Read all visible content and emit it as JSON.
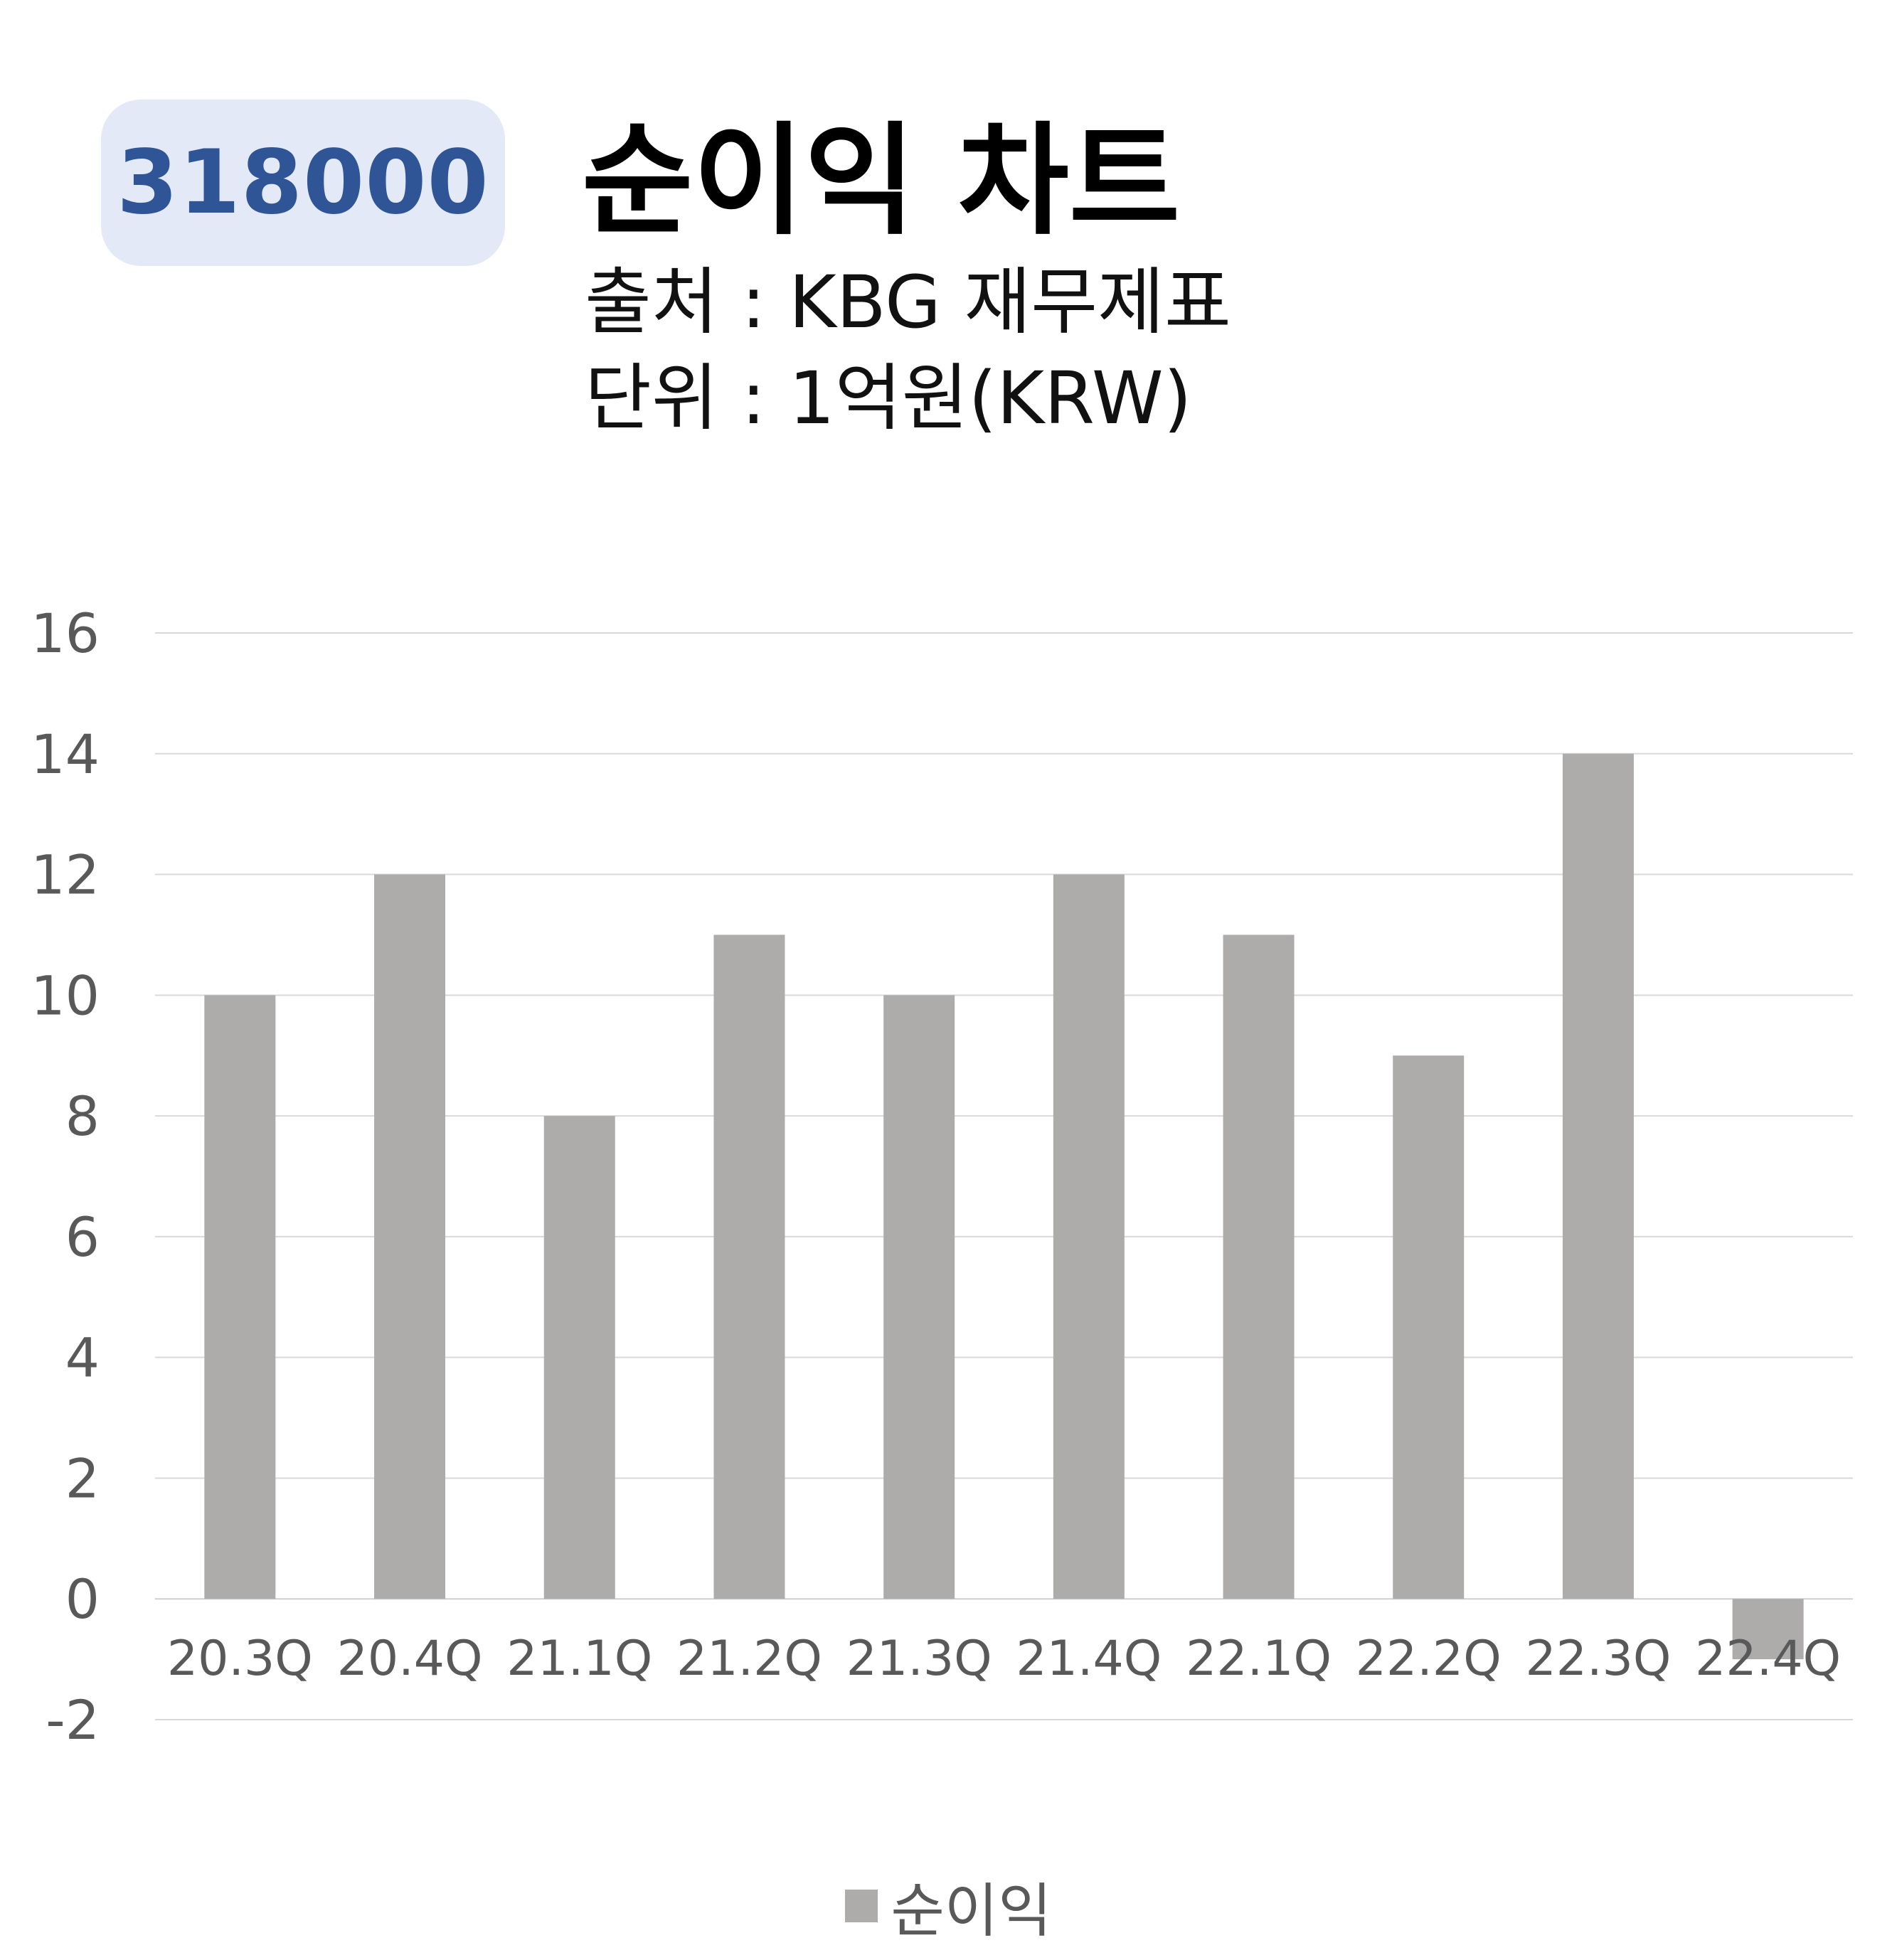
{
  "badge": {
    "text": "318000"
  },
  "header": {
    "title": "순이익 차트",
    "source": "출처 : KBG 재무제표",
    "unit": "단위 : 1억원(KRW)"
  },
  "colors": {
    "bar": "#aeabab",
    "badge_bg": "#e3e9f6",
    "badge_text": "#2f5597",
    "grid": "#d9d9d9",
    "tick_text": "#595959"
  },
  "chart_data": {
    "type": "bar",
    "categories": [
      "20.3Q",
      "20.4Q",
      "21.1Q",
      "21.2Q",
      "21.3Q",
      "21.4Q",
      "22.1Q",
      "22.2Q",
      "22.3Q",
      "22.4Q"
    ],
    "series": [
      {
        "name": "순이익",
        "values": [
          10,
          12,
          8,
          11,
          10,
          12,
          11,
          9,
          14,
          -1
        ]
      }
    ],
    "ylim": [
      -2,
      16
    ],
    "yticks": [
      -2,
      0,
      2,
      4,
      6,
      8,
      10,
      12,
      14,
      16
    ],
    "grid": true,
    "legend": "bottom",
    "xlabel": "",
    "ylabel": ""
  }
}
